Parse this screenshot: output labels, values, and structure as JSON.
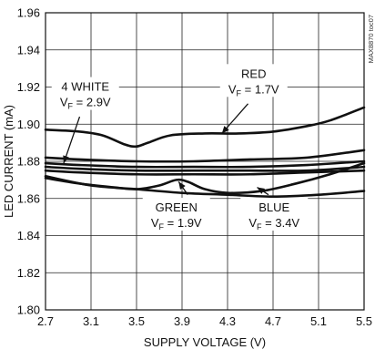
{
  "chart_data": {
    "type": "line",
    "title": "",
    "xlabel": "SUPPLY VOLTAGE (V)",
    "ylabel": "LED CURRENT (mA)",
    "xlim": [
      2.7,
      5.5
    ],
    "ylim": [
      1.8,
      1.96
    ],
    "xticks": [
      "2.7",
      "3.1",
      "3.5",
      "3.9",
      "4.3",
      "4.7",
      "5.1",
      "5.5"
    ],
    "yticks": [
      "1.80",
      "1.82",
      "1.84",
      "1.86",
      "1.88",
      "1.90",
      "1.92",
      "1.94",
      "1.96"
    ],
    "grid": true,
    "figure_code": "MAX8870 toc07",
    "series": [
      {
        "id": "red",
        "x": [
          2.7,
          3.0,
          3.2,
          3.4,
          3.5,
          3.6,
          3.8,
          4.1,
          4.4,
          4.7,
          5.0,
          5.2,
          5.5
        ],
        "values": [
          1.897,
          1.896,
          1.894,
          1.889,
          1.888,
          1.89,
          1.894,
          1.895,
          1.895,
          1.896,
          1.899,
          1.902,
          1.909
        ]
      },
      {
        "id": "white-a",
        "x": [
          2.7,
          3.0,
          3.5,
          4.0,
          4.5,
          5.0,
          5.5
        ],
        "values": [
          1.882,
          1.881,
          1.88,
          1.88,
          1.881,
          1.882,
          1.886
        ]
      },
      {
        "id": "white-b",
        "x": [
          2.7,
          3.0,
          3.5,
          4.0,
          4.5,
          5.0,
          5.5
        ],
        "values": [
          1.879,
          1.878,
          1.877,
          1.877,
          1.877,
          1.878,
          1.88
        ]
      },
      {
        "id": "white-c",
        "x": [
          2.7,
          3.0,
          3.5,
          4.0,
          4.5,
          5.0,
          5.5
        ],
        "values": [
          1.877,
          1.876,
          1.875,
          1.875,
          1.875,
          1.875,
          1.877
        ]
      },
      {
        "id": "white-d",
        "x": [
          2.7,
          3.0,
          3.5,
          4.0,
          4.5,
          5.0,
          5.5
        ],
        "values": [
          1.875,
          1.874,
          1.873,
          1.873,
          1.873,
          1.874,
          1.875
        ]
      },
      {
        "id": "green",
        "x": [
          2.7,
          3.0,
          3.3,
          3.5,
          3.7,
          3.85,
          3.95,
          4.1,
          4.3,
          4.6,
          4.9,
          5.2,
          5.5
        ],
        "values": [
          1.871,
          1.868,
          1.866,
          1.865,
          1.867,
          1.87,
          1.869,
          1.865,
          1.863,
          1.864,
          1.868,
          1.873,
          1.879
        ]
      },
      {
        "id": "blue",
        "x": [
          2.7,
          3.1,
          3.5,
          3.9,
          4.3,
          4.7,
          5.1,
          5.5
        ],
        "values": [
          1.872,
          1.867,
          1.865,
          1.863,
          1.862,
          1.861,
          1.862,
          1.864
        ]
      }
    ],
    "annotations": [
      {
        "id": "red",
        "name": "RED",
        "vf_symbol": "V",
        "vf_sub": "F",
        "vf_value": " = 1.7V",
        "label_x": 4.53,
        "label_y": 1.925,
        "line": [
          [
            4.48,
            1.911
          ],
          [
            4.25,
            1.895
          ]
        ]
      },
      {
        "id": "white",
        "name": "4 WHITE",
        "vf_symbol": "V",
        "vf_sub": "F",
        "vf_value": " = 2.9V",
        "label_x": 3.05,
        "label_y": 1.918,
        "line": [
          [
            3.0,
            1.904
          ],
          [
            2.86,
            1.879
          ]
        ]
      },
      {
        "id": "green",
        "name": "GREEN",
        "vf_symbol": "V",
        "vf_sub": "F",
        "vf_value": " = 1.9V",
        "label_x": 3.85,
        "label_y": 1.853,
        "line": [
          [
            3.95,
            1.862
          ],
          [
            3.87,
            1.869
          ]
        ]
      },
      {
        "id": "blue",
        "name": "BLUE",
        "vf_symbol": "V",
        "vf_sub": "F",
        "vf_value": " = 3.4V",
        "label_x": 4.71,
        "label_y": 1.853,
        "line": [
          [
            4.66,
            1.862
          ],
          [
            4.56,
            1.866
          ]
        ]
      }
    ]
  }
}
